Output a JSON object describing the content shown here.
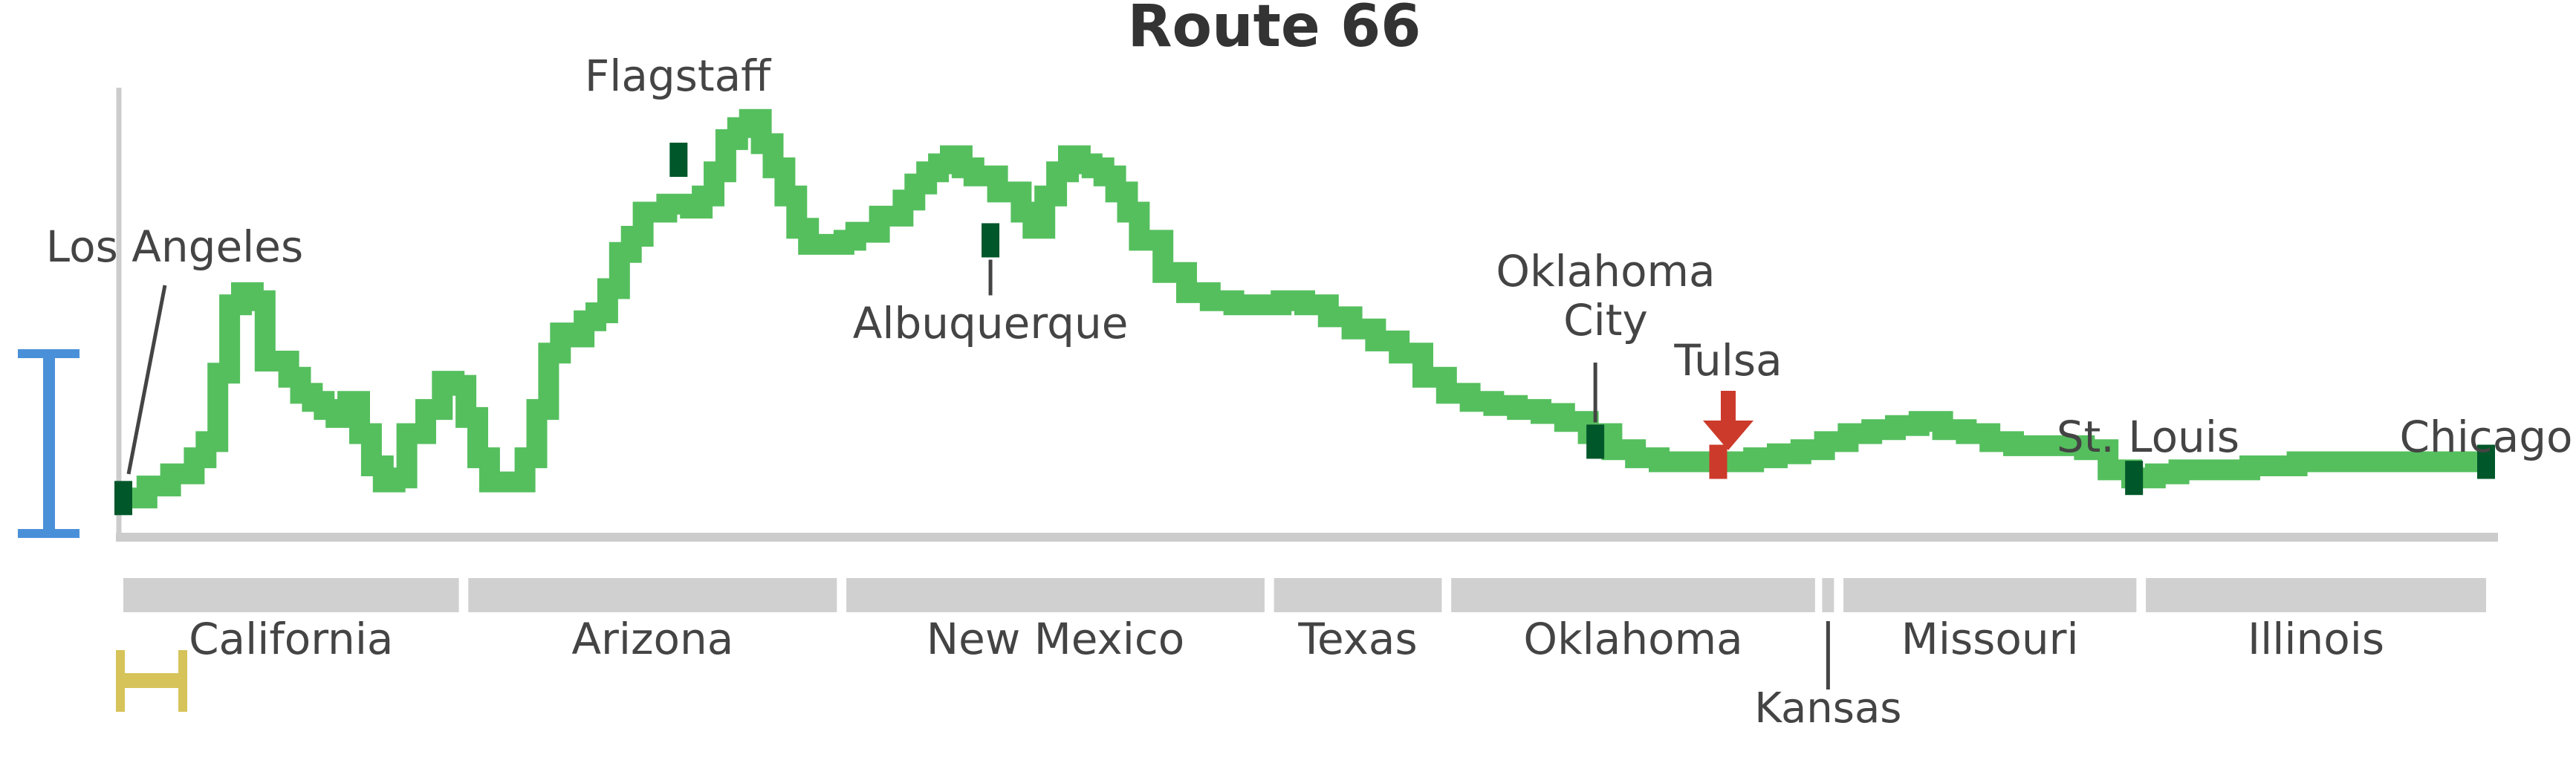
{
  "chart_data": {
    "type": "line",
    "title": "Route 66",
    "xlabel": "",
    "ylabel": "",
    "xlim": [
      0,
      100
    ],
    "ylim": [
      0,
      100
    ],
    "grid": false,
    "series": [
      {
        "color": "#55bf5e",
        "points": [
          [
            0,
            4
          ],
          [
            1,
            7
          ],
          [
            2,
            10
          ],
          [
            3,
            14
          ],
          [
            3.5,
            18
          ],
          [
            4,
            35
          ],
          [
            4.5,
            52
          ],
          [
            5,
            55
          ],
          [
            5.5,
            53
          ],
          [
            6,
            38
          ],
          [
            7,
            34
          ],
          [
            7.5,
            30
          ],
          [
            8,
            28
          ],
          [
            8.5,
            26
          ],
          [
            9,
            24
          ],
          [
            9.5,
            28
          ],
          [
            10,
            20
          ],
          [
            10.5,
            12
          ],
          [
            11,
            8
          ],
          [
            11.5,
            9
          ],
          [
            12,
            20
          ],
          [
            12.8,
            26
          ],
          [
            13.5,
            33
          ],
          [
            14,
            32
          ],
          [
            14.5,
            24
          ],
          [
            15,
            14
          ],
          [
            15.5,
            8
          ],
          [
            16.5,
            8
          ],
          [
            17,
            14
          ],
          [
            17.5,
            26
          ],
          [
            18,
            40
          ],
          [
            18.5,
            45
          ],
          [
            19,
            44
          ],
          [
            19.5,
            48
          ],
          [
            20,
            50
          ],
          [
            20.5,
            56
          ],
          [
            21,
            65
          ],
          [
            21.5,
            69
          ],
          [
            22,
            75
          ],
          [
            23,
            77
          ],
          [
            24,
            76
          ],
          [
            24.5,
            79
          ],
          [
            25,
            85
          ],
          [
            25.5,
            93
          ],
          [
            26,
            96
          ],
          [
            26.5,
            98
          ],
          [
            27,
            92
          ],
          [
            27.5,
            86
          ],
          [
            28,
            79
          ],
          [
            28.5,
            71
          ],
          [
            29,
            67
          ],
          [
            29.5,
            67
          ],
          [
            30,
            67
          ],
          [
            30.5,
            68
          ],
          [
            31,
            70
          ],
          [
            32,
            74
          ],
          [
            33,
            78
          ],
          [
            33.5,
            82
          ],
          [
            34,
            85
          ],
          [
            34.5,
            87
          ],
          [
            35,
            89
          ],
          [
            35.5,
            86
          ],
          [
            36,
            84
          ],
          [
            37,
            80
          ],
          [
            38,
            75
          ],
          [
            38.5,
            71
          ],
          [
            39,
            79
          ],
          [
            39.5,
            85
          ],
          [
            40,
            89
          ],
          [
            40.5,
            87
          ],
          [
            41,
            86
          ],
          [
            41.5,
            84
          ],
          [
            42,
            80
          ],
          [
            42.5,
            75
          ],
          [
            43,
            68
          ],
          [
            44,
            60
          ],
          [
            45,
            55
          ],
          [
            46,
            53
          ],
          [
            47,
            52
          ],
          [
            48,
            52
          ],
          [
            49,
            53
          ],
          [
            50,
            52
          ],
          [
            51,
            49
          ],
          [
            52,
            46
          ],
          [
            53,
            43
          ],
          [
            54,
            40
          ],
          [
            55,
            34
          ],
          [
            56,
            30
          ],
          [
            57,
            28
          ],
          [
            58,
            27
          ],
          [
            59,
            26
          ],
          [
            60,
            25
          ],
          [
            61,
            23
          ],
          [
            62,
            20
          ],
          [
            63,
            16
          ],
          [
            64,
            14
          ],
          [
            65,
            13
          ],
          [
            66,
            13
          ],
          [
            67,
            13
          ],
          [
            68,
            13
          ],
          [
            69,
            14
          ],
          [
            70,
            15
          ],
          [
            71,
            16
          ],
          [
            72,
            18
          ],
          [
            73,
            20
          ],
          [
            74,
            21
          ],
          [
            75,
            22
          ],
          [
            76,
            23
          ],
          [
            77,
            21
          ],
          [
            78,
            20
          ],
          [
            79,
            18
          ],
          [
            80,
            17
          ],
          [
            81,
            17
          ],
          [
            82,
            17
          ],
          [
            83,
            16
          ],
          [
            84,
            11
          ],
          [
            85,
            9
          ],
          [
            86,
            10
          ],
          [
            87,
            11
          ],
          [
            88,
            11
          ],
          [
            89,
            11
          ],
          [
            90,
            12
          ],
          [
            92,
            13
          ],
          [
            94,
            13
          ],
          [
            96,
            13
          ],
          [
            98,
            13
          ],
          [
            100,
            13
          ]
        ]
      }
    ],
    "cities": [
      {
        "name": "Los Angeles",
        "x": 0,
        "y": 4,
        "color": "#00572a",
        "line1": "Los Angeles",
        "line2": ""
      },
      {
        "name": "Flagstaff",
        "x": 23.5,
        "y": 88,
        "color": "#00572a",
        "line1": "Flagstaff",
        "line2": ""
      },
      {
        "name": "Albuquerque",
        "x": 36.7,
        "y": 68,
        "color": "#00572a",
        "line1": "Albuquerque",
        "line2": ""
      },
      {
        "name": "Oklahoma City",
        "x": 62.3,
        "y": 18,
        "color": "#00572a",
        "line1": "Oklahoma",
        "line2": "City"
      },
      {
        "name": "Tulsa",
        "x": 67.5,
        "y": 13,
        "color": "#cc3a2b",
        "line1": "Tulsa",
        "line2": ""
      },
      {
        "name": "St. Louis",
        "x": 85.1,
        "y": 9,
        "color": "#00572a",
        "line1": "St. Louis",
        "line2": ""
      },
      {
        "name": "Chicago",
        "x": 100,
        "y": 13,
        "color": "#00572a",
        "line1": "Chicago",
        "line2": ""
      }
    ],
    "states": [
      {
        "name": "California",
        "start": 0,
        "end": 14.2
      },
      {
        "name": "Arizona",
        "start": 14.6,
        "end": 30.2
      },
      {
        "name": "New Mexico",
        "start": 30.6,
        "end": 48.3
      },
      {
        "name": "Texas",
        "start": 48.7,
        "end": 55.8
      },
      {
        "name": "Oklahoma",
        "start": 56.2,
        "end": 71.6
      },
      {
        "name": "Kansas",
        "start": 71.9,
        "end": 72.4
      },
      {
        "name": "Missouri",
        "start": 72.8,
        "end": 85.2
      },
      {
        "name": "Illinois",
        "start": 85.6,
        "end": 100
      }
    ],
    "legend_colors": {
      "elevation_scale": "#4a90d9",
      "distance_scale": "#d6c35a",
      "axis": "#cccccc",
      "text": "#444444",
      "title": "#333333"
    }
  }
}
